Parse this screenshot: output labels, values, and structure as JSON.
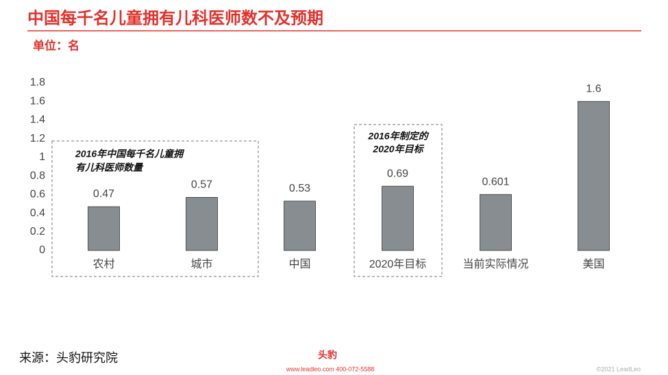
{
  "chart_data": {
    "type": "bar",
    "title": "中国每千名儿童拥有儿科医师数不及预期",
    "subtitle": "单位：名",
    "categories": [
      "农村",
      "城市",
      "中国",
      "2020年目标",
      "当前实际情况",
      "美国"
    ],
    "values": [
      0.47,
      0.57,
      0.53,
      0.69,
      0.601,
      1.6
    ],
    "color": "#878d90",
    "ylim": [
      0,
      1.8
    ],
    "yticks": [
      0,
      0.2,
      0.4,
      0.6,
      0.8,
      1,
      1.2,
      1.4,
      1.6,
      1.8
    ],
    "grid": false,
    "annotations": [
      [
        "2016年中国每千名儿童拥",
        "有儿科医师数量"
      ],
      [
        "2016年制定的",
        "2020年目标"
      ]
    ],
    "source": "来源：头豹研究院"
  },
  "footer": {
    "logo": "头豹",
    "contact": "www.leadleo.com  400-072-5588",
    "copyright": "©2021 LeadLeo"
  }
}
